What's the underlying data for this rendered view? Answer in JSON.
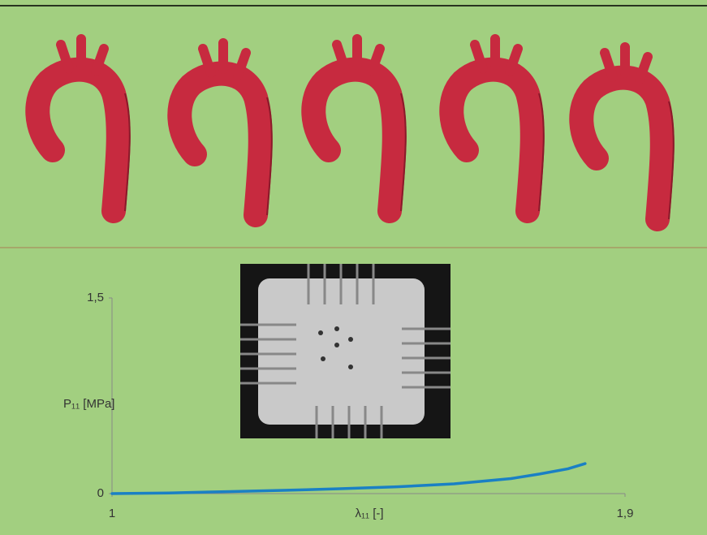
{
  "chart_data": {
    "type": "line",
    "x_label": "λ₁₁ [-]",
    "y_label": "P₁₁ [MPa]",
    "x": [
      1,
      1.1,
      1.2,
      1.3,
      1.4,
      1.5,
      1.6,
      1.7,
      1.75,
      1.8,
      1.83
    ],
    "series": [
      {
        "color": "#1a80c4",
        "values": [
          0,
          0.005,
          0.015,
          0.025,
          0.037,
          0.052,
          0.075,
          0.115,
          0.15,
          0.19,
          0.23
        ]
      }
    ],
    "xlim": [
      1,
      1.9
    ],
    "xticks": [
      1,
      {
        "value": 1.9,
        "label": "1,9"
      }
    ],
    "ylim": [
      0,
      1.5
    ],
    "yticks": [
      0,
      {
        "value": 1.5,
        "label": "1,5"
      }
    ]
  }
}
